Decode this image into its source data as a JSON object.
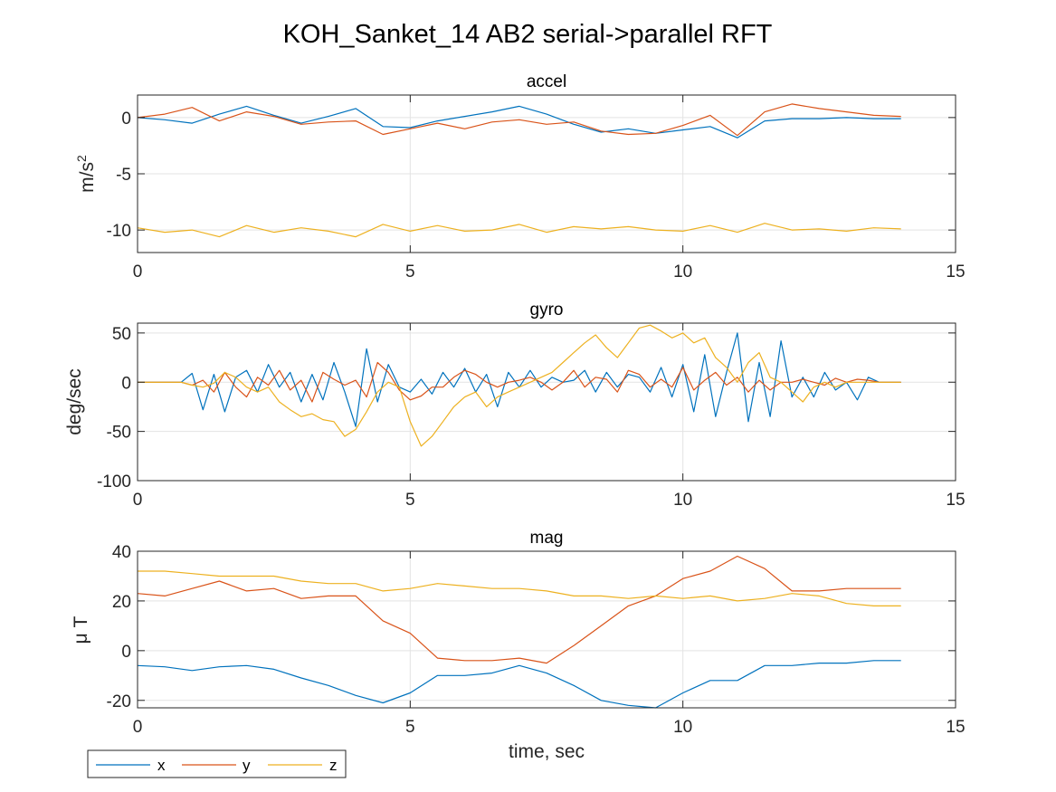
{
  "figure_title": "KOH_Sanket_14 AB2 serial->parallel RFT",
  "colors": {
    "x": "#0072BD",
    "y": "#D95319",
    "z": "#EDB120",
    "grid": "#e3e3e3",
    "axis": "#262626"
  },
  "legend": {
    "placement": "bottom-left",
    "entries": [
      "x",
      "y",
      "z"
    ]
  },
  "chart_data": [
    {
      "type": "line",
      "title": "accel",
      "xlabel": "",
      "ylabel": "m/s",
      "ylabel_sup": "2",
      "xlim": [
        0,
        15
      ],
      "ylim": [
        -12,
        2
      ],
      "xticks": [
        0,
        5,
        10,
        15
      ],
      "xtick_labels": [
        "0",
        "5",
        "10",
        "15"
      ],
      "yticks": [
        0,
        -5,
        -10
      ],
      "ytick_labels": [
        "0",
        "-5",
        "-10"
      ],
      "grid": true,
      "x": [
        0,
        0.5,
        1,
        1.5,
        2,
        2.5,
        3,
        3.5,
        4,
        4.5,
        5,
        5.5,
        6,
        6.5,
        7,
        7.5,
        8,
        8.5,
        9,
        9.5,
        10,
        10.5,
        11,
        11.5,
        12,
        12.5,
        13,
        13.5,
        14
      ],
      "series": [
        {
          "name": "x",
          "values": [
            0,
            -0.2,
            -0.5,
            0.3,
            1.0,
            0.2,
            -0.5,
            0.1,
            0.8,
            -0.8,
            -0.9,
            -0.3,
            0.1,
            0.5,
            1.0,
            0.3,
            -0.6,
            -1.3,
            -1.0,
            -1.4,
            -1.1,
            -0.8,
            -1.8,
            -0.3,
            -0.1,
            -0.1,
            0.0,
            -0.1,
            -0.1
          ]
        },
        {
          "name": "y",
          "values": [
            0,
            0.3,
            0.9,
            -0.3,
            0.5,
            0.1,
            -0.6,
            -0.4,
            -0.3,
            -1.5,
            -1.0,
            -0.5,
            -1.0,
            -0.4,
            -0.2,
            -0.6,
            -0.4,
            -1.2,
            -1.5,
            -1.4,
            -0.7,
            0.2,
            -1.6,
            0.5,
            1.2,
            0.8,
            0.5,
            0.2,
            0.1
          ]
        },
        {
          "name": "z",
          "values": [
            -9.8,
            -10.2,
            -10.0,
            -10.6,
            -9.6,
            -10.2,
            -9.8,
            -10.1,
            -10.6,
            -9.5,
            -10.1,
            -9.6,
            -10.1,
            -10.0,
            -9.5,
            -10.2,
            -9.7,
            -9.9,
            -9.7,
            -10.0,
            -10.1,
            -9.6,
            -10.2,
            -9.4,
            -10.0,
            -9.9,
            -10.1,
            -9.8,
            -9.9
          ]
        }
      ]
    },
    {
      "type": "line",
      "title": "gyro",
      "xlabel": "",
      "ylabel": "deg/sec",
      "xlim": [
        0,
        15
      ],
      "ylim": [
        -100,
        60
      ],
      "xticks": [
        0,
        5,
        10,
        15
      ],
      "xtick_labels": [
        "0",
        "5",
        "10",
        "15"
      ],
      "yticks": [
        50,
        0,
        -50,
        -100
      ],
      "ytick_labels": [
        "50",
        "0",
        "-50",
        "-100"
      ],
      "grid": true,
      "x": [
        0,
        0.5,
        0.8,
        1.0,
        1.2,
        1.4,
        1.6,
        1.8,
        2.0,
        2.2,
        2.4,
        2.6,
        2.8,
        3.0,
        3.2,
        3.4,
        3.6,
        3.8,
        4.0,
        4.2,
        4.4,
        4.6,
        4.8,
        5.0,
        5.2,
        5.4,
        5.6,
        5.8,
        6.0,
        6.2,
        6.4,
        6.6,
        6.8,
        7.0,
        7.2,
        7.4,
        7.6,
        7.8,
        8.0,
        8.2,
        8.4,
        8.6,
        8.8,
        9.0,
        9.2,
        9.4,
        9.6,
        9.8,
        10.0,
        10.2,
        10.4,
        10.6,
        10.8,
        11.0,
        11.2,
        11.4,
        11.6,
        11.8,
        12.0,
        12.2,
        12.4,
        12.6,
        12.8,
        13.0,
        13.2,
        13.4,
        13.6,
        14.0
      ],
      "series": [
        {
          "name": "x",
          "values": [
            0,
            0,
            0,
            9,
            -28,
            8,
            -30,
            5,
            12,
            -10,
            18,
            -5,
            10,
            -20,
            8,
            -18,
            20,
            -10,
            -45,
            34,
            -20,
            18,
            -5,
            -10,
            3,
            -12,
            10,
            -5,
            14,
            -10,
            8,
            -25,
            10,
            -5,
            12,
            -5,
            5,
            0,
            2,
            12,
            -10,
            10,
            -5,
            8,
            5,
            -10,
            15,
            -15,
            18,
            -30,
            28,
            -35,
            10,
            50,
            -40,
            20,
            -35,
            42,
            -15,
            5,
            -15,
            10,
            -8,
            0,
            -18,
            5,
            0,
            0
          ]
        },
        {
          "name": "y",
          "values": [
            0,
            0,
            0,
            -3,
            2,
            -10,
            10,
            -5,
            -15,
            5,
            -3,
            12,
            -8,
            2,
            -20,
            10,
            3,
            -3,
            2,
            -15,
            20,
            10,
            -8,
            -18,
            -14,
            -5,
            -5,
            5,
            12,
            8,
            0,
            -5,
            0,
            2,
            5,
            0,
            -8,
            0,
            12,
            -5,
            5,
            3,
            -10,
            12,
            8,
            -5,
            3,
            -5,
            15,
            -8,
            2,
            10,
            -3,
            5,
            -10,
            2,
            -8,
            0,
            0,
            3,
            0,
            -3,
            4,
            0,
            3,
            2,
            0,
            0
          ]
        },
        {
          "name": "z",
          "values": [
            0,
            0,
            0,
            -3,
            -5,
            -1,
            10,
            5,
            -5,
            -10,
            -5,
            -20,
            -28,
            -35,
            -32,
            -38,
            -40,
            -55,
            -48,
            -30,
            -10,
            0,
            -5,
            -40,
            -65,
            -55,
            -40,
            -25,
            -15,
            -10,
            -25,
            -15,
            -10,
            -5,
            0,
            5,
            10,
            20,
            30,
            40,
            48,
            35,
            25,
            40,
            55,
            58,
            52,
            45,
            50,
            40,
            45,
            25,
            15,
            0,
            20,
            30,
            5,
            0,
            -10,
            -20,
            -5,
            0,
            -5,
            0,
            0,
            0,
            0,
            0
          ]
        }
      ]
    },
    {
      "type": "line",
      "title": "mag",
      "xlabel": "time, sec",
      "ylabel": "μ T",
      "xlim": [
        0,
        15
      ],
      "ylim": [
        -23,
        40
      ],
      "xticks": [
        0,
        5,
        10,
        15
      ],
      "xtick_labels": [
        "0",
        "5",
        "10",
        "15"
      ],
      "yticks": [
        40,
        20,
        0,
        -20
      ],
      "ytick_labels": [
        "40",
        "20",
        "0",
        "-20"
      ],
      "grid": true,
      "x": [
        0,
        0.5,
        1,
        1.5,
        2,
        2.5,
        3,
        3.5,
        4,
        4.5,
        5,
        5.5,
        6,
        6.5,
        7,
        7.5,
        8,
        8.5,
        9,
        9.5,
        10,
        10.5,
        11,
        11.5,
        12,
        12.5,
        13,
        13.5,
        14
      ],
      "series": [
        {
          "name": "x",
          "values": [
            -6,
            -6.5,
            -8,
            -6.5,
            -6,
            -7.5,
            -11,
            -14,
            -18,
            -21,
            -17,
            -10,
            -10,
            -9,
            -6,
            -9,
            -14,
            -20,
            -22,
            -24,
            -17,
            -12,
            -12,
            -6,
            -6,
            -5,
            -5,
            -4,
            -4
          ]
        },
        {
          "name": "y",
          "values": [
            23,
            22,
            25,
            28,
            24,
            25,
            21,
            22,
            22,
            12,
            7,
            -3,
            -4,
            -4,
            -3,
            -5,
            2,
            10,
            18,
            22,
            29,
            32,
            38,
            33,
            24,
            24,
            25,
            25,
            25
          ]
        },
        {
          "name": "z",
          "values": [
            32,
            32,
            31,
            30,
            30,
            30,
            28,
            27,
            27,
            24,
            25,
            27,
            26,
            25,
            25,
            24,
            22,
            22,
            21,
            22,
            21,
            22,
            20,
            21,
            23,
            22,
            19,
            18,
            18
          ]
        }
      ]
    }
  ]
}
